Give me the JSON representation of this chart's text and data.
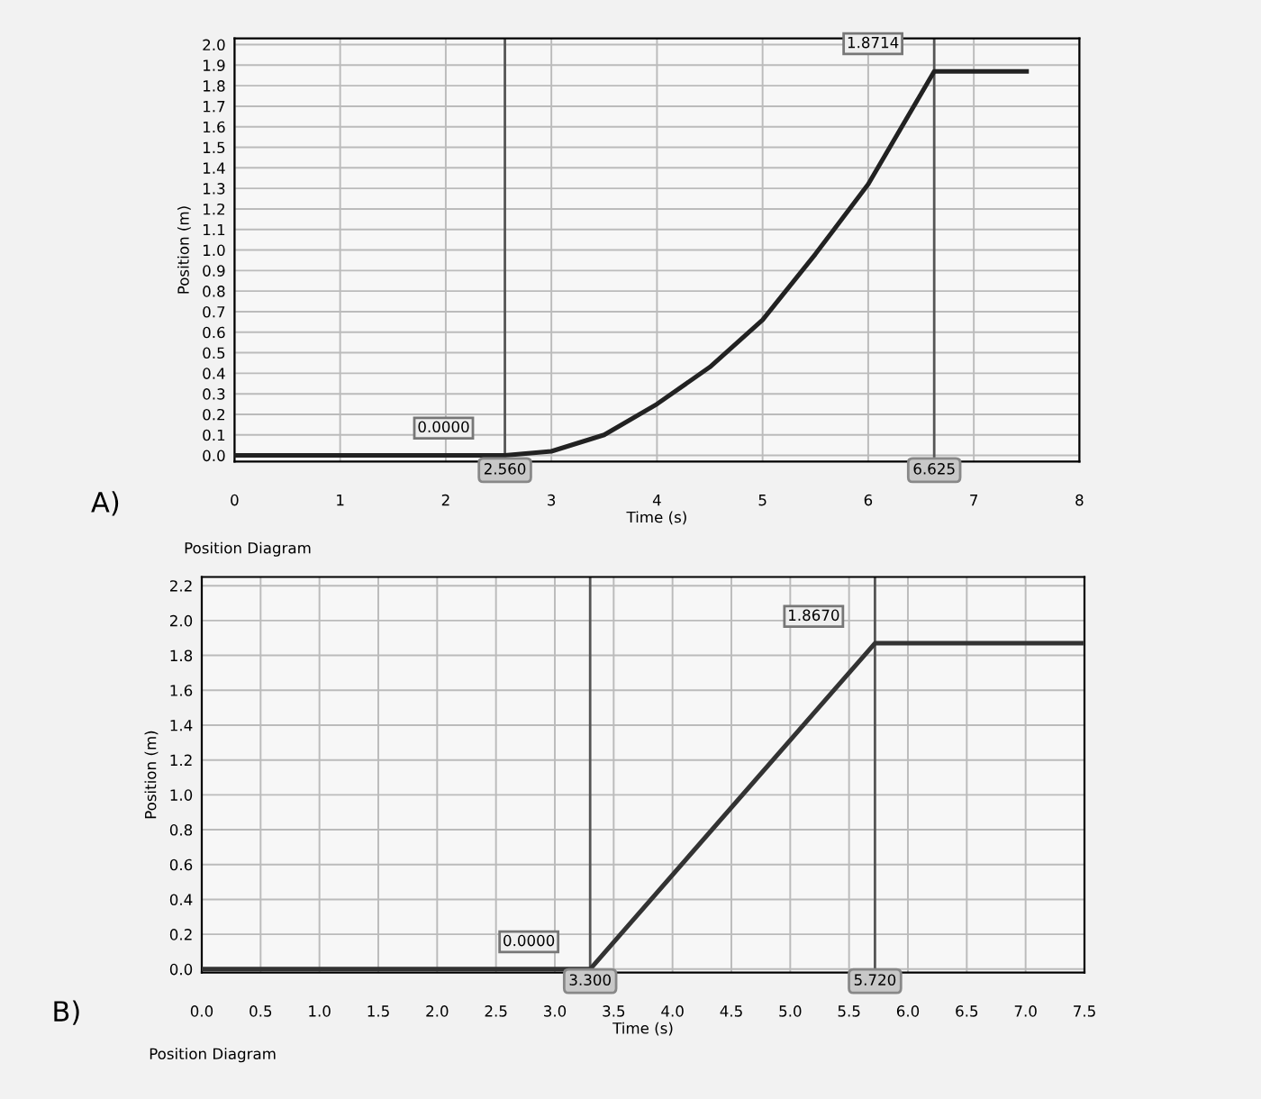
{
  "chart_data": [
    {
      "type": "line",
      "xlabel": "Time (s)",
      "ylabel": "Position (m)",
      "x": [
        0,
        2.56,
        3,
        3.5,
        4,
        4.5,
        5,
        5.5,
        6,
        6.625,
        7.5
      ],
      "series": [
        {
          "color": "#222222",
          "values": [
            0,
            0,
            0.02,
            0.1,
            0.25,
            0.43,
            0.66,
            0.98,
            1.32,
            1.87,
            1.87
          ]
        }
      ],
      "xlim": [
        0,
        8
      ],
      "xticks": [
        0,
        1,
        2,
        3,
        4,
        5,
        6,
        7,
        8
      ],
      "ylim": [
        -0.03,
        2.03
      ],
      "yticks": [
        {
          "value": 0,
          "label": "0.0"
        },
        0.1,
        0.2,
        0.3,
        0.4,
        0.5,
        0.6,
        0.7,
        0.8,
        0.9,
        {
          "value": 1,
          "label": "1.0"
        },
        1.1,
        1.2,
        1.3,
        1.4,
        1.5,
        1.6,
        1.7,
        1.8,
        1.9,
        {
          "value": 2,
          "label": "2.0"
        }
      ],
      "grid": true,
      "legend": false,
      "ref_lines": [
        {
          "axis": "x",
          "value": 2.56,
          "label": "2.560",
          "color": "#555555"
        },
        {
          "axis": "x",
          "value": 6.625,
          "label": "6.625",
          "color": "#555555"
        }
      ],
      "annotations": [
        {
          "text": "0.0000",
          "x": 2.56,
          "y": 0
        },
        {
          "text": "1.8714",
          "x": 6.625,
          "y": 1.8714
        },
        "A)",
        "Position Diagram"
      ]
    },
    {
      "type": "line",
      "xlabel": "Time (s)",
      "ylabel": "Position (m)",
      "x": [
        0,
        3.3,
        5.72,
        7.5
      ],
      "series": [
        {
          "color": "#333333",
          "values": [
            0,
            0,
            1.87,
            1.87
          ]
        }
      ],
      "xlim": [
        0,
        7.5
      ],
      "xticks": [
        {
          "value": 0,
          "label": "0.0"
        },
        0.5,
        {
          "value": 1,
          "label": "1.0"
        },
        1.5,
        {
          "value": 2,
          "label": "2.0"
        },
        2.5,
        {
          "value": 3,
          "label": "3.0"
        },
        3.5,
        {
          "value": 4,
          "label": "4.0"
        },
        4.5,
        {
          "value": 5,
          "label": "5.0"
        },
        5.5,
        {
          "value": 6,
          "label": "6.0"
        },
        6.5,
        {
          "value": 7,
          "label": "7.0"
        },
        7.5
      ],
      "ylim": [
        -0.02,
        2.25
      ],
      "yticks": [
        {
          "value": 0,
          "label": "0.0"
        },
        0.2,
        0.4,
        0.6,
        0.8,
        {
          "value": 1,
          "label": "1.0"
        },
        1.2,
        1.4,
        1.6,
        1.8,
        {
          "value": 2,
          "label": "2.0"
        },
        2.2
      ],
      "grid": true,
      "legend": false,
      "ref_lines": [
        {
          "axis": "x",
          "value": 3.3,
          "label": "3.300",
          "color": "#555555"
        },
        {
          "axis": "x",
          "value": 5.72,
          "label": "5.720",
          "color": "#555555"
        }
      ],
      "annotations": [
        {
          "text": "0.0000",
          "x": 3.3,
          "y": 0
        },
        {
          "text": "1.8670",
          "x": 5.72,
          "y": 1.867
        },
        "B)",
        "Position Diagram"
      ]
    }
  ]
}
